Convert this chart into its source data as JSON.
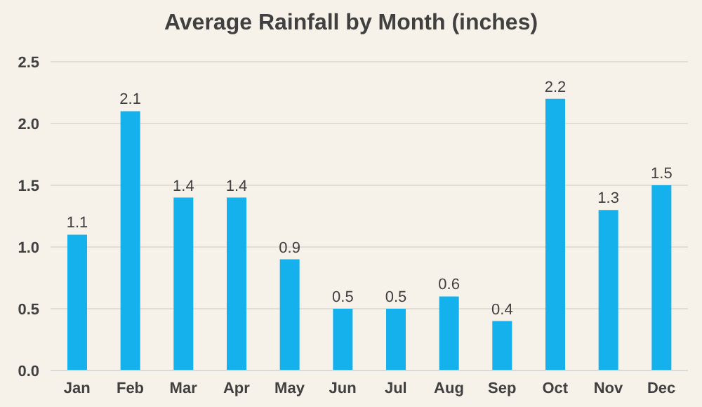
{
  "chart_data": {
    "type": "bar",
    "title": "Average Rainfall by Month (inches)",
    "categories": [
      "Jan",
      "Feb",
      "Mar",
      "Apr",
      "May",
      "Jun",
      "Jul",
      "Aug",
      "Sep",
      "Oct",
      "Nov",
      "Dec"
    ],
    "values": [
      1.1,
      2.1,
      1.4,
      1.4,
      0.9,
      0.5,
      0.5,
      0.6,
      0.4,
      2.2,
      1.3,
      1.5
    ],
    "color": "#14b1ec",
    "ylim": [
      0,
      2.5
    ],
    "yticks": [
      {
        "value": 0,
        "label": "0.0"
      },
      {
        "value": 0.5,
        "label": "0.5"
      },
      {
        "value": 1,
        "label": "1.0"
      },
      {
        "value": 1.5,
        "label": "1.5"
      },
      {
        "value": 2,
        "label": "2.0"
      },
      {
        "value": 2.5,
        "label": "2.5"
      }
    ],
    "grid": "y",
    "data_labels": true
  }
}
